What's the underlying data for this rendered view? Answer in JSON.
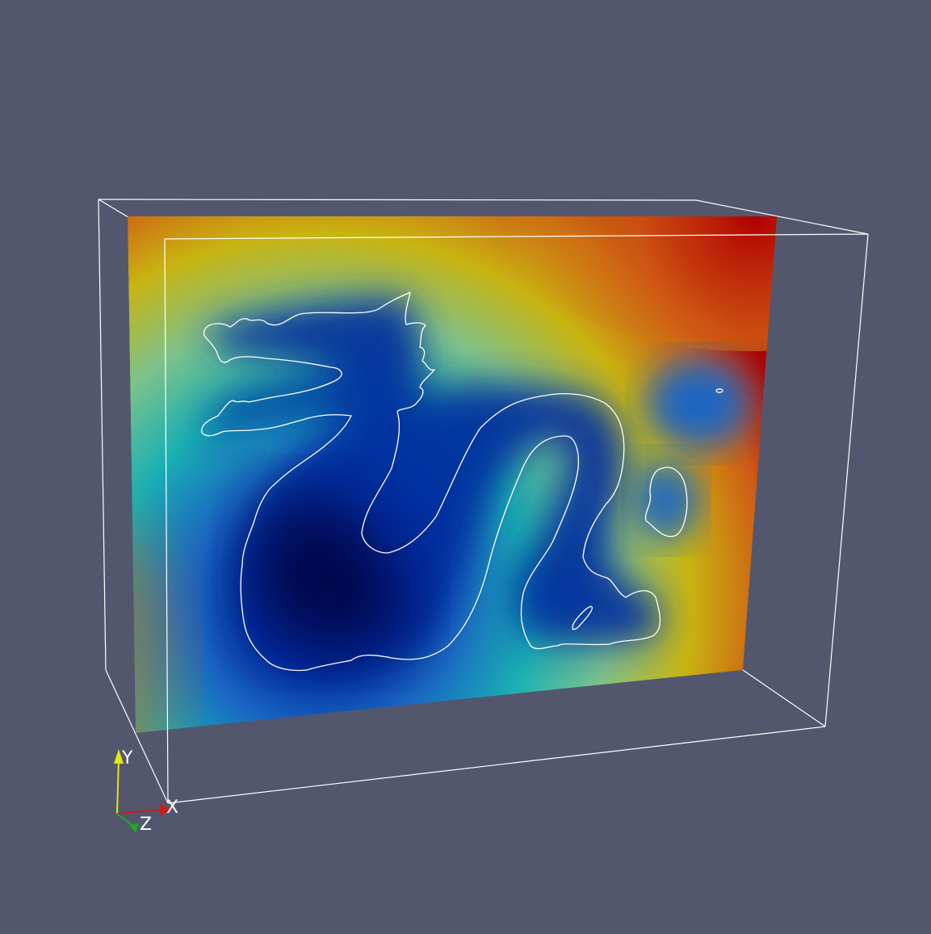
{
  "render_view": {
    "background_color": "#52576e",
    "outline_color": "#ffffff",
    "contour_color": "#ffffff",
    "colormap": {
      "stops": [
        {
          "t": 0.0,
          "color": "#00003a"
        },
        {
          "t": 0.12,
          "color": "#002a9e"
        },
        {
          "t": 0.25,
          "color": "#1a66c2"
        },
        {
          "t": 0.4,
          "color": "#1ab0b4"
        },
        {
          "t": 0.55,
          "color": "#7ec28a"
        },
        {
          "t": 0.7,
          "color": "#c8b411"
        },
        {
          "t": 0.85,
          "color": "#cf5a14"
        },
        {
          "t": 1.0,
          "color": "#b00000"
        }
      ]
    },
    "orientation_axes": {
      "x": {
        "label": "X",
        "color": "#c81e1e"
      },
      "y": {
        "label": "Y",
        "color": "#e6e60a"
      },
      "z": {
        "label": "Z",
        "color": "#1eaa1e"
      }
    }
  }
}
